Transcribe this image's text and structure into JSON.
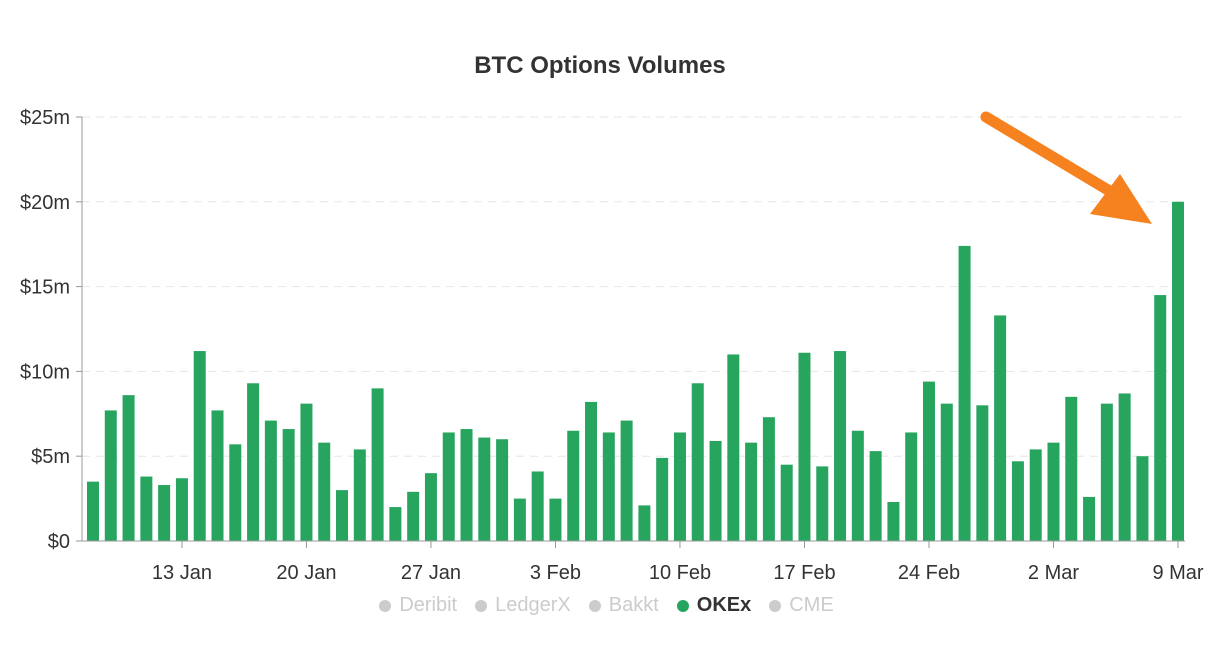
{
  "chart_data": {
    "type": "bar",
    "title": "BTC Options Volumes",
    "xlabel": "",
    "ylabel": "",
    "ylim": [
      0,
      25
    ],
    "y_unit": "USD millions",
    "y_ticks": [
      "$0",
      "$5m",
      "$10m",
      "$15m",
      "$20m",
      "$25m"
    ],
    "x_ticks": [
      "13 Jan",
      "20 Jan",
      "27 Jan",
      "3 Feb",
      "10 Feb",
      "17 Feb",
      "24 Feb",
      "2 Mar",
      "9 Mar"
    ],
    "grid": true,
    "legend_position": "bottom-center",
    "series": [
      {
        "name": "OKEx",
        "color": "#27a55f",
        "values": [
          3.5,
          7.7,
          8.6,
          3.8,
          3.3,
          3.7,
          11.2,
          7.7,
          5.7,
          9.3,
          7.1,
          6.6,
          8.1,
          5.8,
          3.0,
          5.4,
          9.0,
          2.0,
          2.9,
          4.0,
          6.4,
          6.6,
          6.1,
          6.0,
          2.5,
          4.1,
          2.5,
          6.5,
          8.2,
          6.4,
          7.1,
          2.1,
          4.9,
          6.4,
          9.3,
          5.9,
          11.0,
          5.8,
          7.3,
          4.5,
          11.1,
          4.4,
          11.2,
          6.5,
          5.3,
          2.3,
          6.4,
          9.4,
          8.1,
          17.4,
          8.0,
          13.3,
          4.7,
          5.4,
          5.8,
          8.5,
          2.6,
          8.1,
          8.7,
          5.0,
          14.5,
          20.0
        ]
      }
    ],
    "legend": [
      {
        "name": "Deribit",
        "active": false,
        "color": "#cccccc"
      },
      {
        "name": "LedgerX",
        "active": false,
        "color": "#cccccc"
      },
      {
        "name": "Bakkt",
        "active": false,
        "color": "#cccccc"
      },
      {
        "name": "OKEx",
        "active": true,
        "color": "#27a55f"
      },
      {
        "name": "CME",
        "active": false,
        "color": "#cccccc"
      }
    ],
    "annotation_color": "#f5821f"
  }
}
